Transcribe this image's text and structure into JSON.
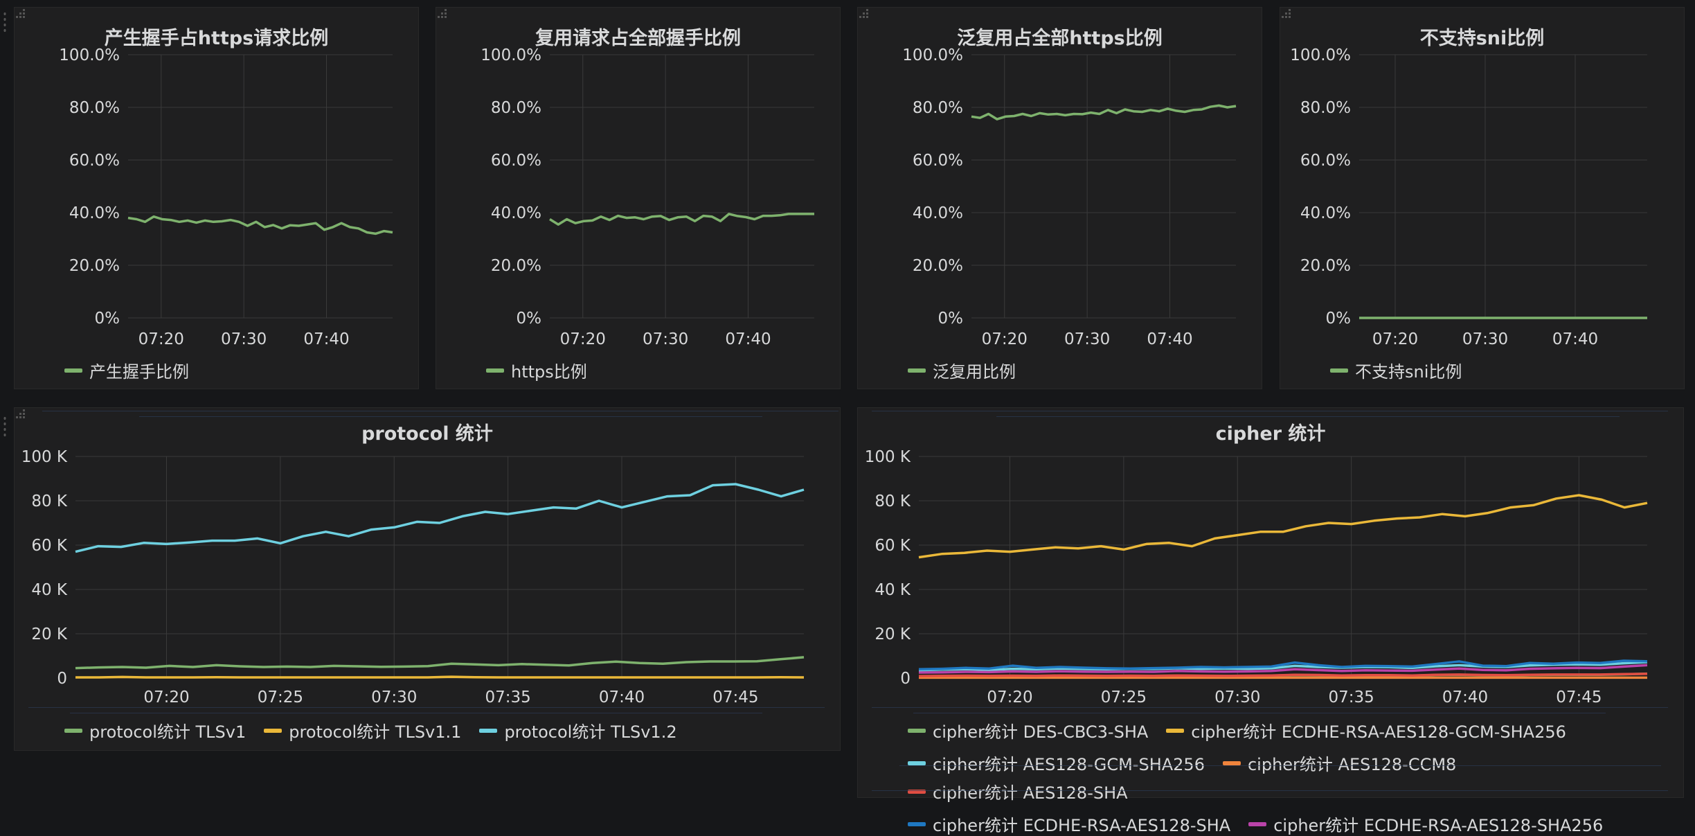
{
  "colors": {
    "green": "#7eb26d",
    "yellow": "#eab839",
    "cyan": "#6ed0e0",
    "orange": "#ef843c",
    "red": "#e24d42",
    "blue": "#1f78c1",
    "magenta": "#ba43a9"
  },
  "chart_data": [
    {
      "id": "p1",
      "type": "line",
      "title": "产生握手占https请求比例",
      "x_ticks": [
        "07:20",
        "07:30",
        "07:40"
      ],
      "y_ticks": [
        "0%",
        "20.0%",
        "40.0%",
        "60.0%",
        "80.0%",
        "100.0%"
      ],
      "ylim": [
        0,
        100
      ],
      "x_range": [
        "07:16",
        "07:48"
      ],
      "series": [
        {
          "name": "产生握手比例",
          "color": "#7eb26d",
          "values": [
            38,
            37.5,
            36.5,
            38.5,
            37.5,
            37.2,
            36.5,
            37,
            36.2,
            37,
            36.5,
            36.7,
            37.2,
            36.5,
            35,
            36.5,
            34.5,
            35.3,
            34,
            35.2,
            35,
            35.5,
            36,
            33.5,
            34.5,
            36,
            34.5,
            34,
            32.5,
            32,
            33,
            32.5
          ]
        }
      ]
    },
    {
      "id": "p2",
      "type": "line",
      "title": "复用请求占全部握手比例",
      "x_ticks": [
        "07:20",
        "07:30",
        "07:40"
      ],
      "y_ticks": [
        "0%",
        "20.0%",
        "40.0%",
        "60.0%",
        "80.0%",
        "100.0%"
      ],
      "ylim": [
        0,
        100
      ],
      "x_range": [
        "07:16",
        "07:48"
      ],
      "series": [
        {
          "name": "https比例",
          "color": "#7eb26d",
          "values": [
            37.5,
            35.5,
            37.5,
            36,
            36.8,
            37,
            38.5,
            37.2,
            38.8,
            38,
            38.2,
            37.5,
            38.5,
            38.7,
            37.2,
            38.2,
            38.5,
            36.8,
            38.8,
            38.5,
            36.8,
            39.5,
            38.7,
            38.3,
            37.5,
            38.8,
            38.8,
            39,
            39.5,
            39.5,
            39.5,
            39.5
          ]
        }
      ]
    },
    {
      "id": "p3",
      "type": "line",
      "title": "泛复用占全部https比例",
      "x_ticks": [
        "07:20",
        "07:30",
        "07:40"
      ],
      "y_ticks": [
        "0%",
        "20.0%",
        "40.0%",
        "60.0%",
        "80.0%",
        "100.0%"
      ],
      "ylim": [
        0,
        100
      ],
      "x_range": [
        "07:16",
        "07:48"
      ],
      "series": [
        {
          "name": "泛复用比例",
          "color": "#7eb26d",
          "values": [
            76.5,
            76,
            77.5,
            75.5,
            76.5,
            76.7,
            77.5,
            76.7,
            77.8,
            77.3,
            77.5,
            77,
            77.5,
            77.4,
            78,
            77.5,
            79,
            77.8,
            79.2,
            78.5,
            78.3,
            79,
            78.5,
            79.5,
            78.7,
            78.3,
            79,
            79.2,
            80.2,
            80.7,
            80,
            80.5
          ]
        }
      ]
    },
    {
      "id": "p4",
      "type": "line",
      "title": "不支持sni比例",
      "x_ticks": [
        "07:20",
        "07:30",
        "07:40"
      ],
      "y_ticks": [
        "0%",
        "20.0%",
        "40.0%",
        "60.0%",
        "80.0%",
        "100.0%"
      ],
      "ylim": [
        0,
        100
      ],
      "x_range": [
        "07:16",
        "07:48"
      ],
      "series": [
        {
          "name": "不支持sni比例",
          "color": "#7eb26d",
          "values": [
            0,
            0,
            0,
            0,
            0,
            0,
            0,
            0,
            0,
            0,
            0,
            0,
            0,
            0,
            0,
            0,
            0,
            0,
            0,
            0,
            0,
            0,
            0,
            0,
            0,
            0,
            0,
            0,
            0,
            0,
            0,
            0
          ]
        }
      ]
    },
    {
      "id": "p5",
      "type": "line",
      "title": "protocol 统计",
      "x_ticks": [
        "07:20",
        "07:25",
        "07:30",
        "07:35",
        "07:40",
        "07:45"
      ],
      "y_ticks": [
        "0",
        "20 K",
        "40 K",
        "60 K",
        "80 K",
        "100 K"
      ],
      "ylim": [
        0,
        100000
      ],
      "x_range": [
        "07:16",
        "07:48"
      ],
      "series": [
        {
          "name": "protocol统计 TLSv1",
          "color": "#7eb26d",
          "values": [
            4500,
            4800,
            5000,
            4700,
            5500,
            5000,
            5800,
            5300,
            5000,
            5200,
            5000,
            5500,
            5300,
            5100,
            5200,
            5400,
            6500,
            6200,
            5800,
            6300,
            6000,
            5700,
            6800,
            7400,
            6800,
            6500,
            7200,
            7500,
            7500,
            7600,
            8500,
            9400
          ]
        },
        {
          "name": "protocol统计 TLSv1.1",
          "color": "#eab839",
          "values": [
            300,
            300,
            500,
            300,
            300,
            300,
            400,
            300,
            300,
            300,
            300,
            300,
            300,
            300,
            300,
            300,
            600,
            400,
            300,
            300,
            300,
            300,
            300,
            300,
            300,
            300,
            300,
            300,
            300,
            300,
            400,
            300
          ]
        },
        {
          "name": "protocol统计 TLSv1.2",
          "color": "#6ed0e0",
          "values": [
            57000,
            59500,
            59200,
            61000,
            60500,
            61200,
            62000,
            62000,
            63000,
            60800,
            64000,
            66000,
            64000,
            67000,
            68000,
            70500,
            70000,
            73000,
            75000,
            74000,
            75500,
            77000,
            76500,
            80000,
            77000,
            79500,
            82000,
            82500,
            87000,
            87500,
            85000,
            82000,
            85000
          ]
        }
      ]
    },
    {
      "id": "p6",
      "type": "line",
      "title": "cipher 统计",
      "x_ticks": [
        "07:20",
        "07:25",
        "07:30",
        "07:35",
        "07:40",
        "07:45"
      ],
      "y_ticks": [
        "0",
        "20 K",
        "40 K",
        "60 K",
        "80 K",
        "100 K"
      ],
      "ylim": [
        0,
        100000
      ],
      "x_range": [
        "07:16",
        "07:48"
      ],
      "series": [
        {
          "name": "cipher统计 DES-CBC3-SHA",
          "color": "#7eb26d",
          "values": [
            800,
            900,
            1000,
            900,
            1000,
            900,
            1100,
            1000,
            900,
            1000,
            1000,
            1100,
            1000,
            1000,
            1000,
            1100,
            1400,
            1300,
            1100,
            1200,
            1200,
            1100,
            1400,
            1500,
            1300,
            1200,
            1400,
            1500,
            1500,
            1500,
            1700,
            2000
          ]
        },
        {
          "name": "cipher统计 ECDHE-RSA-AES128-GCM-SHA256",
          "color": "#eab839",
          "values": [
            54500,
            56000,
            56500,
            57500,
            57000,
            58000,
            59000,
            58500,
            59500,
            58000,
            60500,
            61000,
            59500,
            63000,
            64500,
            66000,
            66000,
            68500,
            70000,
            69500,
            71000,
            72000,
            72500,
            74000,
            73000,
            74500,
            77000,
            78000,
            81000,
            82500,
            80500,
            77000,
            79000
          ]
        },
        {
          "name": "cipher统计 AES128-GCM-SHA256",
          "color": "#6ed0e0",
          "values": [
            3500,
            3800,
            4000,
            3700,
            4200,
            4000,
            4300,
            4100,
            4000,
            4200,
            4100,
            4400,
            4200,
            4300,
            4200,
            4400,
            5500,
            5000,
            4700,
            5000,
            4900,
            4600,
            5300,
            5800,
            5200,
            5000,
            5700,
            6000,
            6200,
            6000,
            6700,
            7200
          ]
        },
        {
          "name": "cipher统计 AES128-CCM8",
          "color": "#ef843c",
          "values": [
            200,
            200,
            200,
            200,
            200,
            200,
            200,
            200,
            200,
            200,
            200,
            200,
            200,
            200,
            200,
            200,
            200,
            200,
            200,
            200,
            200,
            200,
            200,
            200,
            200,
            200,
            200,
            200,
            200,
            200,
            200,
            200
          ]
        },
        {
          "name": "cipher统计 AES128-SHA",
          "color": "#e24d42",
          "values": [
            900,
            1000,
            1100,
            1000,
            1100,
            1000,
            1200,
            1100,
            1000,
            1100,
            1000,
            1200,
            1100,
            1000,
            1100,
            1200,
            1500,
            1400,
            1200,
            1300,
            1300,
            1200,
            1500,
            1600,
            1400,
            1300,
            1500,
            1600,
            1600,
            1600,
            1800,
            1900
          ]
        },
        {
          "name": "cipher统计 ECDHE-RSA-AES128-SHA",
          "color": "#1f78c1",
          "values": [
            4000,
            4200,
            4600,
            4300,
            5600,
            4600,
            5000,
            4700,
            4400,
            4300,
            4500,
            4700,
            5000,
            4800,
            5000,
            5200,
            7000,
            5800,
            5000,
            5500,
            5400,
            5200,
            6300,
            7500,
            5600,
            5400,
            6800,
            6500,
            7000,
            6800,
            7800,
            7600
          ]
        },
        {
          "name": "cipher统计 ECDHE-RSA-AES128-SHA256",
          "color": "#ba43a9",
          "values": [
            2500,
            2600,
            2800,
            2700,
            3000,
            2800,
            3100,
            2900,
            2800,
            2900,
            2800,
            3200,
            3000,
            2900,
            3000,
            3200,
            4000,
            3600,
            3200,
            3500,
            3400,
            3300,
            3800,
            4300,
            3700,
            3500,
            4200,
            4400,
            4600,
            4500,
            5200,
            5800
          ]
        }
      ]
    }
  ]
}
